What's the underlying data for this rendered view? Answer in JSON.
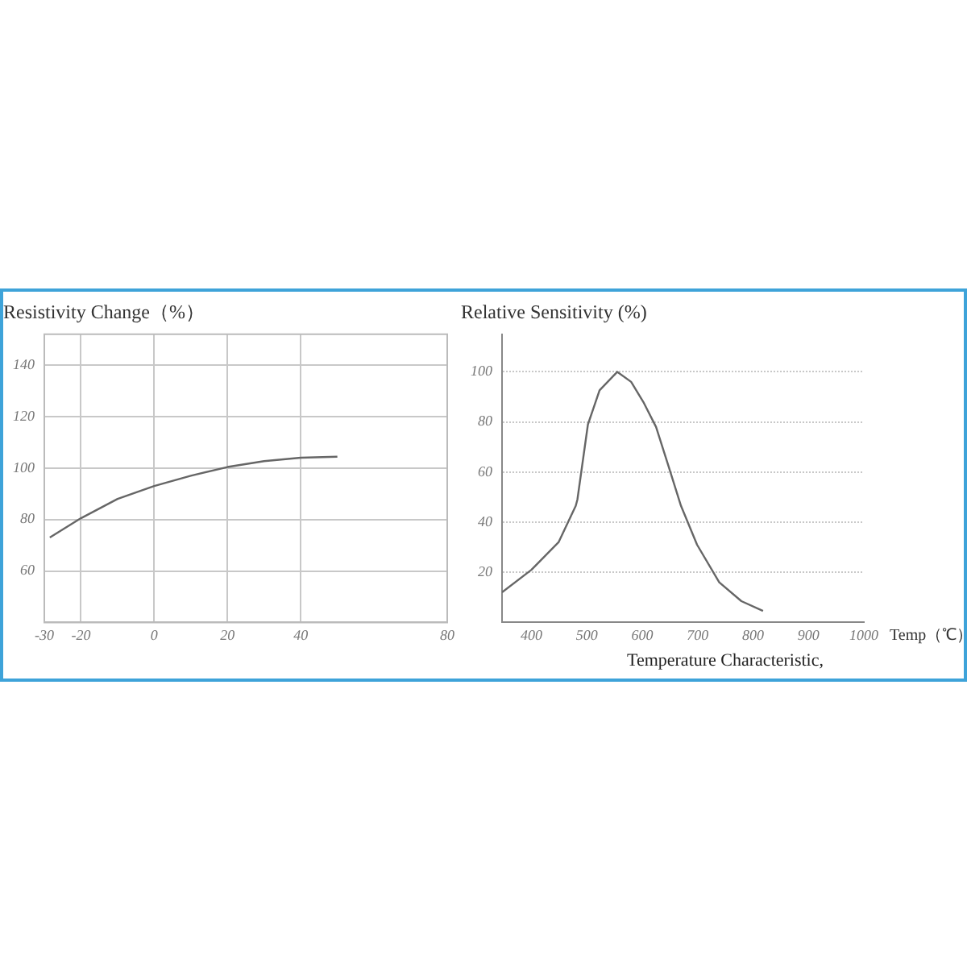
{
  "chart_data": [
    {
      "type": "line",
      "title": "Resistivity Change（%）",
      "color": "#666666",
      "x": [
        -28.5,
        -20,
        -10,
        0,
        10,
        20,
        30,
        40,
        50
      ],
      "values": [
        73,
        80.5,
        88,
        93,
        97,
        100.4,
        102.7,
        104,
        104.4
      ],
      "xlim": [
        -30,
        80
      ],
      "xticks": [
        -30,
        -20,
        0,
        20,
        40,
        80
      ],
      "ylim": [
        40,
        152
      ],
      "yticks": [
        60,
        80,
        100,
        120,
        140
      ],
      "grid": true
    },
    {
      "type": "line",
      "title": "Relative Sensitivity (%)",
      "xlabel": "Temp（℃）",
      "annotations": [
        "Temperature Characteristic,"
      ],
      "color": "#666666",
      "x": [
        347,
        400,
        449,
        480,
        483,
        502,
        523,
        555,
        580,
        602,
        625,
        648,
        670,
        699,
        739,
        779,
        818
      ],
      "values": [
        12,
        21,
        32,
        46.5,
        49,
        79,
        92.6,
        100,
        96,
        88,
        78,
        62,
        46.5,
        31,
        16,
        8.5,
        4.6
      ],
      "xlim": [
        347,
        1000
      ],
      "xticks": [
        400,
        500,
        600,
        700,
        800,
        900,
        1000
      ],
      "ylim": [
        0,
        115
      ],
      "yticks": [
        20,
        40,
        60,
        80,
        100
      ],
      "grid": "y"
    }
  ]
}
